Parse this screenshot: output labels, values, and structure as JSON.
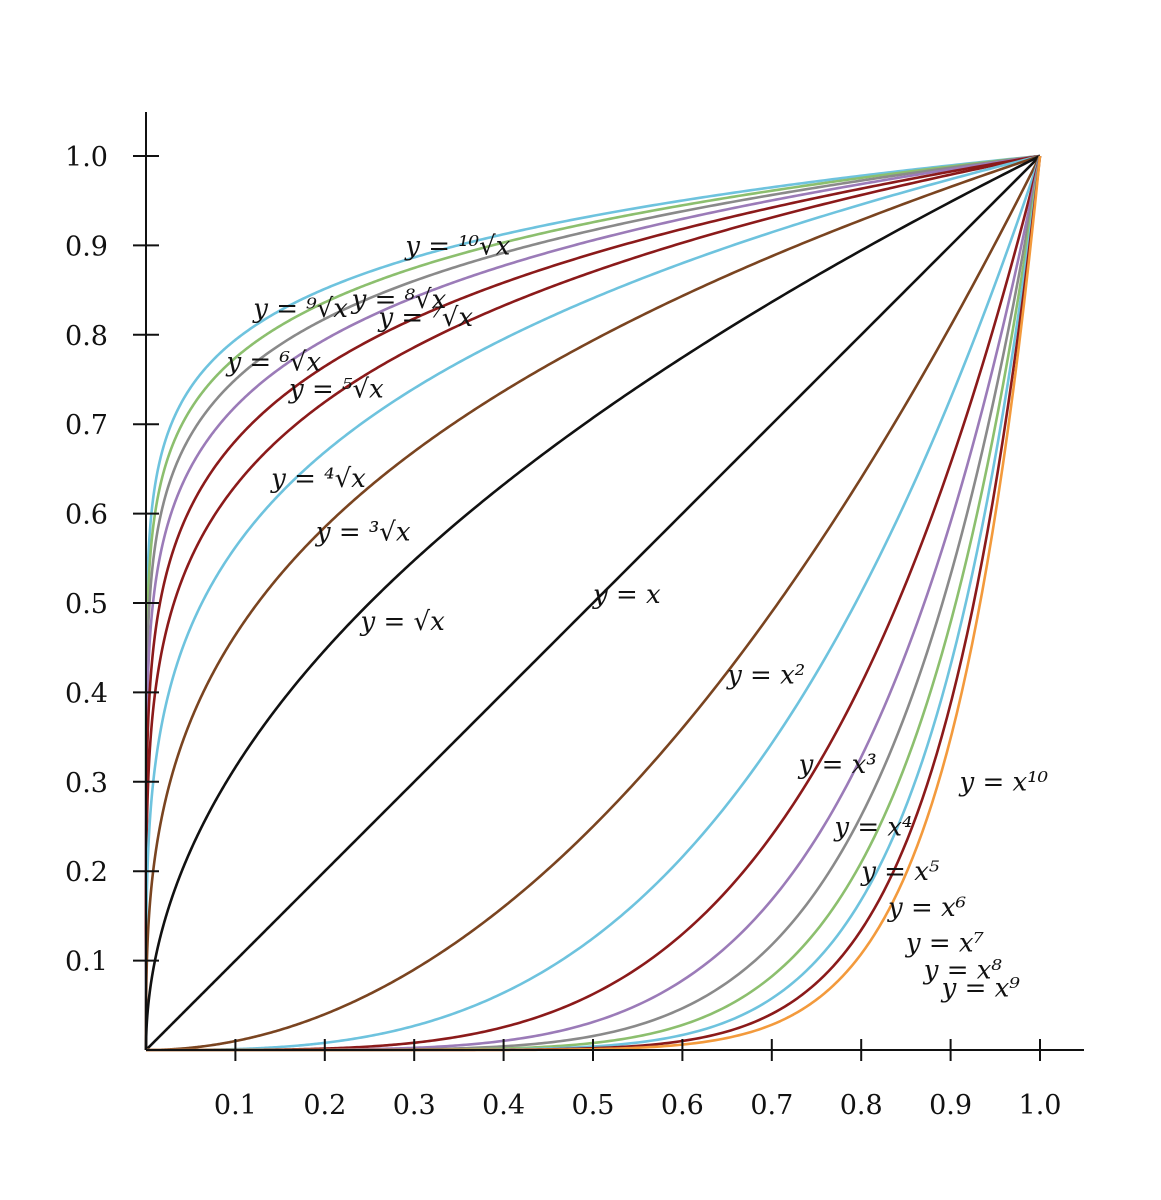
{
  "chart_data": {
    "type": "line",
    "title": "",
    "xlabel": "",
    "ylabel": "",
    "xlim": [
      0,
      1.05
    ],
    "ylim": [
      0,
      1.05
    ],
    "grid": false,
    "legend": "none",
    "x_ticks": [
      "0.1",
      "0.2",
      "0.3",
      "0.4",
      "0.5",
      "0.6",
      "0.7",
      "0.8",
      "0.9",
      "1.0"
    ],
    "y_ticks": [
      "0.1",
      "0.2",
      "0.3",
      "0.4",
      "0.5",
      "0.6",
      "0.7",
      "0.8",
      "0.9",
      "1.0"
    ],
    "series": [
      {
        "id": "root10",
        "exponent": 0.1,
        "color": "#6ec3de",
        "label": "y = ¹⁰√x",
        "label_at": [
          0.29,
          0.89
        ]
      },
      {
        "id": "root9",
        "exponent": 0.1111,
        "color": "#8cbf6e",
        "label": "y = ⁹√x",
        "label_at": [
          0.12,
          0.82
        ]
      },
      {
        "id": "root8",
        "exponent": 0.125,
        "color": "#8a8a8a",
        "label": "y = ⁸√x",
        "label_at": [
          0.23,
          0.83
        ]
      },
      {
        "id": "root7",
        "exponent": 0.1429,
        "color": "#9b7bb8",
        "label": "y = ⁷√x",
        "label_at": [
          0.26,
          0.81
        ]
      },
      {
        "id": "root6",
        "exponent": 0.1667,
        "color": "#8b1a1a",
        "label": "y = ⁶√x",
        "label_at": [
          0.09,
          0.76
        ]
      },
      {
        "id": "root5",
        "exponent": 0.2,
        "color": "#8b1a1a",
        "label": "y = ⁵√x",
        "label_at": [
          0.16,
          0.73
        ]
      },
      {
        "id": "root4",
        "exponent": 0.25,
        "color": "#6ec3de",
        "label": "y = ⁴√x",
        "label_at": [
          0.14,
          0.63
        ]
      },
      {
        "id": "root3",
        "exponent": 0.3333,
        "color": "#7a4420",
        "label": "y = ³√x",
        "label_at": [
          0.19,
          0.57
        ]
      },
      {
        "id": "root2",
        "exponent": 0.5,
        "color": "#111111",
        "label": "y = √x",
        "label_at": [
          0.24,
          0.47
        ]
      },
      {
        "id": "linear",
        "exponent": 1,
        "color": "#111111",
        "label": "y = x",
        "label_at": [
          0.5,
          0.5
        ]
      },
      {
        "id": "pow2",
        "exponent": 2,
        "color": "#7a4420",
        "label": "y = x²",
        "label_at": [
          0.65,
          0.41
        ]
      },
      {
        "id": "pow3",
        "exponent": 3,
        "color": "#6ec3de",
        "label": "y = x³",
        "label_at": [
          0.73,
          0.31
        ]
      },
      {
        "id": "pow4",
        "exponent": 4,
        "color": "#8b1a1a",
        "label": "y = x⁴",
        "label_at": [
          0.77,
          0.24
        ]
      },
      {
        "id": "pow5",
        "exponent": 5,
        "color": "#9b7bb8",
        "label": "y = x⁵",
        "label_at": [
          0.8,
          0.19
        ]
      },
      {
        "id": "pow6",
        "exponent": 6,
        "color": "#8a8a8a",
        "label": "y = x⁶",
        "label_at": [
          0.83,
          0.15
        ]
      },
      {
        "id": "pow7",
        "exponent": 7,
        "color": "#8cbf6e",
        "label": "y = x⁷",
        "label_at": [
          0.85,
          0.11
        ]
      },
      {
        "id": "pow8",
        "exponent": 8,
        "color": "#6ec3de",
        "label": "y = x⁸",
        "label_at": [
          0.87,
          0.08
        ]
      },
      {
        "id": "pow9",
        "exponent": 9,
        "color": "#8b1a1a",
        "label": "y = x⁹",
        "label_at": [
          0.89,
          0.06
        ]
      },
      {
        "id": "pow10",
        "exponent": 10,
        "color": "#f39a3c",
        "label": "y = x¹⁰",
        "label_at": [
          0.91,
          0.29
        ]
      }
    ]
  }
}
